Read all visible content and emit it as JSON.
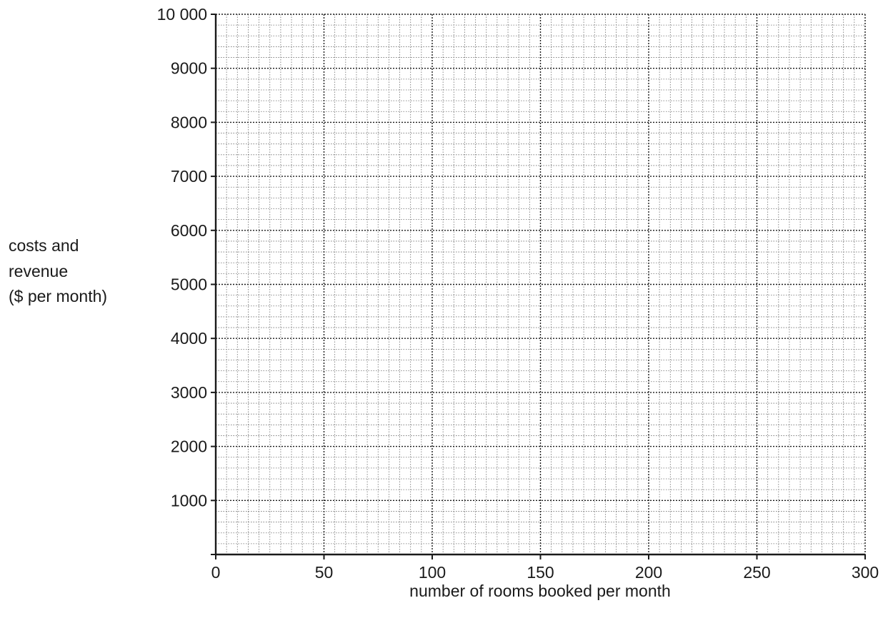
{
  "chart_data": {
    "type": "line",
    "title": "",
    "xlabel": "number of rooms booked per month",
    "ylabel_lines": [
      "costs and",
      "revenue",
      "($ per month)"
    ],
    "xlim": [
      0,
      300
    ],
    "ylim": [
      0,
      10000
    ],
    "x_major_step": 50,
    "x_minor_step": 5,
    "y_major_step": 1000,
    "y_minor_step": 200,
    "x_tick_labels": [
      "0",
      "50",
      "100",
      "150",
      "200",
      "250",
      "300"
    ],
    "y_tick_labels": [
      "1000",
      "2000",
      "3000",
      "4000",
      "5000",
      "6000",
      "7000",
      "8000",
      "9000",
      "10 000"
    ],
    "grid": true,
    "series": []
  }
}
